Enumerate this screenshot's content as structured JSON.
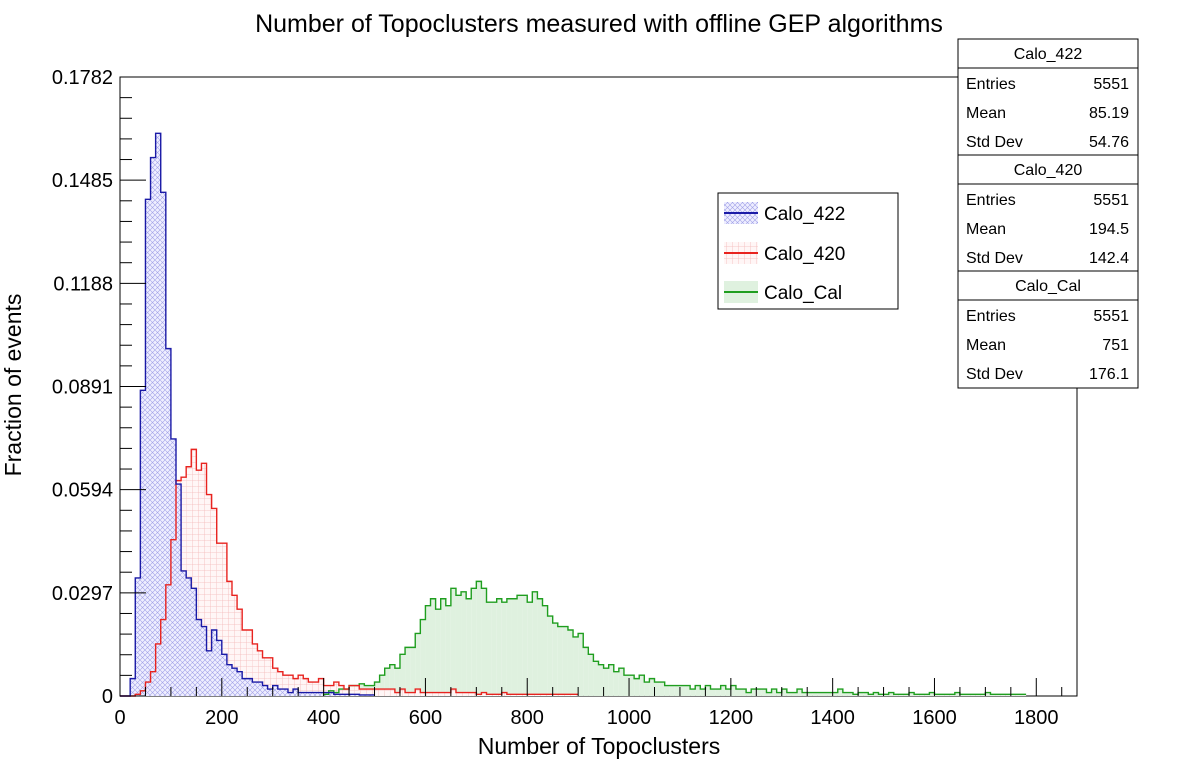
{
  "chart_data": {
    "type": "histogram",
    "title": "Number of Topoclusters measured with offline GEP algorithms",
    "xlabel": "Number of Topoclusters",
    "ylabel": "Fraction of events",
    "xlim": [
      0,
      1880
    ],
    "ylim": [
      0,
      0.1782
    ],
    "bin_width": 10,
    "xticks": [
      "0",
      "200",
      "400",
      "600",
      "800",
      "1000",
      "1200",
      "1400",
      "1600",
      "1800"
    ],
    "yticks": [
      "0",
      "0.0297",
      "0.0594",
      "0.0891",
      "0.1188",
      "0.1485",
      "0.1782"
    ],
    "grid": false,
    "legend_position": "upper-middle-right",
    "series": [
      {
        "name": "Calo_422",
        "color": "#1a1aa6",
        "fill": "hatched-light-blue",
        "x_start": 0,
        "values": [
          0,
          0,
          0.005,
          0.034,
          0.088,
          0.143,
          0.155,
          0.162,
          0.145,
          0.1,
          0.074,
          0.061,
          0.036,
          0.034,
          0.031,
          0.022,
          0.02,
          0.013,
          0.019,
          0.016,
          0.012,
          0.009,
          0.008,
          0.007,
          0.005,
          0.005,
          0.004,
          0.004,
          0.003,
          0.002,
          0.003,
          0.002,
          0.002,
          0.001,
          0.002,
          0.001,
          0.001,
          0.001,
          0.001,
          0.001,
          0.001,
          0.001,
          0.0005,
          0.0005,
          0.0005,
          0.0005,
          0.0005,
          0.0003,
          0.0003,
          0.0003
        ]
      },
      {
        "name": "Calo_420",
        "color": "#e8231f",
        "fill": "light-red-grid",
        "x_start": 0,
        "values": [
          0,
          0,
          0,
          0.0005,
          0.0015,
          0.004,
          0.007,
          0.015,
          0.022,
          0.032,
          0.045,
          0.062,
          0.063,
          0.066,
          0.071,
          0.065,
          0.067,
          0.058,
          0.054,
          0.044,
          0.044,
          0.033,
          0.029,
          0.025,
          0.019,
          0.019,
          0.015,
          0.013,
          0.011,
          0.011,
          0.008,
          0.007,
          0.006,
          0.006,
          0.005,
          0.006,
          0.005,
          0.004,
          0.004,
          0.005,
          0.003,
          0.003,
          0.004,
          0.003,
          0.002,
          0.003,
          0.003,
          0.002,
          0.002,
          0.002,
          0.002,
          0.002,
          0.002,
          0.002,
          0.001,
          0.002,
          0.001,
          0.001,
          0.002,
          0.001,
          0.001,
          0.001,
          0.001,
          0.001,
          0.001,
          0.002,
          0.001,
          0.001,
          0.001,
          0.001,
          0.0005,
          0.001,
          0.0005,
          0.0005,
          0.0005,
          0.001,
          0.0005,
          0.0005,
          0.0005,
          0.0005,
          0.0005,
          0.0005,
          0.0005,
          0.0005,
          0.0005,
          0.0005,
          0.0005,
          0.0005,
          0.0005,
          0.0005
        ]
      },
      {
        "name": "Calo_Cal",
        "color": "#1f9e1f",
        "fill": "light-green",
        "x_start": 400,
        "values": [
          0.0005,
          0.0015,
          0.001,
          0.002,
          0.002,
          0.003,
          0.003,
          0.0035,
          0.003,
          0.003,
          0.004,
          0.006,
          0.008,
          0.009,
          0.008,
          0.012,
          0.014,
          0.014,
          0.018,
          0.022,
          0.026,
          0.028,
          0.025,
          0.028,
          0.026,
          0.031,
          0.029,
          0.03,
          0.028,
          0.031,
          0.033,
          0.031,
          0.027,
          0.027,
          0.028,
          0.027,
          0.028,
          0.028,
          0.029,
          0.029,
          0.027,
          0.03,
          0.028,
          0.026,
          0.023,
          0.021,
          0.02,
          0.02,
          0.019,
          0.017,
          0.018,
          0.014,
          0.012,
          0.01,
          0.009,
          0.008,
          0.009,
          0.007,
          0.008,
          0.006,
          0.006,
          0.005,
          0.006,
          0.004,
          0.005,
          0.004,
          0.004,
          0.003,
          0.003,
          0.003,
          0.003,
          0.003,
          0.002,
          0.003,
          0.002,
          0.003,
          0.002,
          0.002,
          0.003,
          0.002,
          0.003,
          0.002,
          0.002,
          0.001,
          0.002,
          0.002,
          0.002,
          0.001,
          0.002,
          0.001,
          0.002,
          0.001,
          0.001,
          0.002,
          0.001,
          0.001,
          0.001,
          0.001,
          0.001,
          0.001,
          0.001,
          0.002,
          0.001,
          0.001,
          0.0005,
          0.001,
          0.001,
          0.0005,
          0.001,
          0.0005,
          0.0005,
          0.001,
          0.0005,
          0.0005,
          0.0005,
          0.001,
          0.0005,
          0.0005,
          0.0005,
          0.001,
          0.0005,
          0.0005,
          0.0005,
          0.0005,
          0.001,
          0.0005,
          0.0005,
          0.0005,
          0.0005,
          0.0005,
          0.001,
          0.0005,
          0.0005,
          0.0005,
          0.0005,
          0.0005,
          0.0005,
          0.0005
        ]
      }
    ]
  },
  "stats": [
    {
      "name": "Calo_422",
      "rows": [
        {
          "label": "Entries",
          "value": "5551"
        },
        {
          "label": "Mean",
          "value": "85.19"
        },
        {
          "label": "Std Dev",
          "value": "54.76"
        }
      ]
    },
    {
      "name": "Calo_420",
      "rows": [
        {
          "label": "Entries",
          "value": "5551"
        },
        {
          "label": "Mean",
          "value": "194.5"
        },
        {
          "label": "Std Dev",
          "value": "142.4"
        }
      ]
    },
    {
      "name": "Calo_Cal",
      "rows": [
        {
          "label": "Entries",
          "value": "5551"
        },
        {
          "label": "Mean",
          "value": "751"
        },
        {
          "label": "Std Dev",
          "value": "176.1"
        }
      ]
    }
  ]
}
